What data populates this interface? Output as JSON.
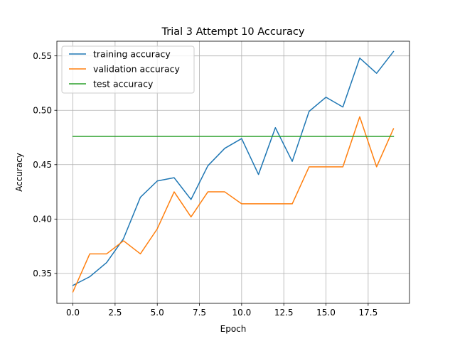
{
  "chart_data": {
    "type": "line",
    "title": "Trial 3 Attempt 10 Accuracy",
    "xlabel": "Epoch",
    "ylabel": "Accuracy",
    "xlim": [
      -0.95,
      19.95
    ],
    "ylim": [
      0.3225,
      0.5635
    ],
    "xticks": [
      0.0,
      2.5,
      5.0,
      7.5,
      10.0,
      12.5,
      15.0,
      17.5
    ],
    "xtick_labels": [
      "0.0",
      "2.5",
      "5.0",
      "7.5",
      "10.0",
      "12.5",
      "15.0",
      "17.5"
    ],
    "yticks": [
      0.35,
      0.4,
      0.45,
      0.5,
      0.55
    ],
    "ytick_labels": [
      "0.35",
      "0.40",
      "0.45",
      "0.50",
      "0.55"
    ],
    "grid": true,
    "legend_position": "top-left",
    "x": [
      0,
      1,
      2,
      3,
      4,
      5,
      6,
      7,
      8,
      9,
      10,
      11,
      12,
      13,
      14,
      15,
      16,
      17,
      18,
      19
    ],
    "series": [
      {
        "name": "training accuracy",
        "color": "#1f77b4",
        "values": [
          0.339,
          0.347,
          0.36,
          0.382,
          0.42,
          0.435,
          0.438,
          0.418,
          0.449,
          0.465,
          0.474,
          0.441,
          0.484,
          0.453,
          0.499,
          0.512,
          0.503,
          0.548,
          0.534,
          0.554
        ]
      },
      {
        "name": "validation accuracy",
        "color": "#ff7f0e",
        "values": [
          0.333,
          0.368,
          0.368,
          0.38,
          0.368,
          0.391,
          0.425,
          0.402,
          0.425,
          0.425,
          0.414,
          0.414,
          0.414,
          0.414,
          0.448,
          0.448,
          0.448,
          0.494,
          0.448,
          0.483
        ]
      },
      {
        "name": "test accuracy",
        "color": "#2ca02c",
        "values": [
          0.476,
          0.476,
          0.476,
          0.476,
          0.476,
          0.476,
          0.476,
          0.476,
          0.476,
          0.476,
          0.476,
          0.476,
          0.476,
          0.476,
          0.476,
          0.476,
          0.476,
          0.476,
          0.476,
          0.476
        ]
      }
    ]
  }
}
